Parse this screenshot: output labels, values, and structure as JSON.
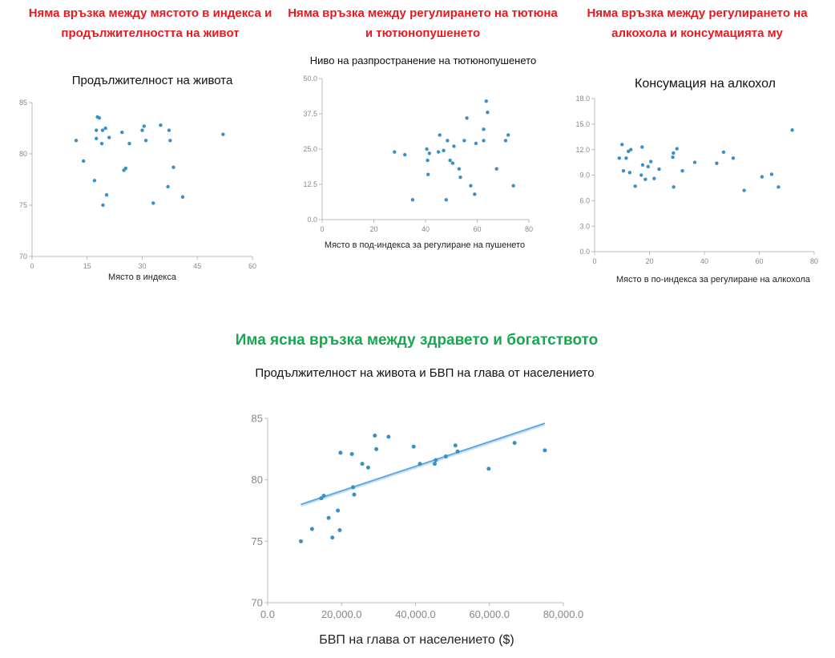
{
  "headlines": {
    "h1": "Няма връзка между мястото в индекса и продължителността на живот",
    "h2": "Няма връзка между регулирането на тютюна и тютюнопушенето",
    "h3": "Няма връзка между регулирането на алкохола и консумацията му",
    "h4": "Има ясна връзка между здравето и богатството"
  },
  "colors": {
    "headline_red": "#e8191e",
    "headline_green": "#1aa550",
    "point": "#3a8fc6",
    "trend": "#5aa7e0",
    "axis": "#bbbbbb"
  },
  "chart_data": [
    {
      "type": "scatter",
      "title": "Продължителност на живота",
      "xlabel": "Място в индекса",
      "ylabel": "",
      "xlim": [
        0,
        60
      ],
      "ylim": [
        70,
        85
      ],
      "xticks": [
        "0",
        "15",
        "30",
        "45",
        "60"
      ],
      "yticks": [
        "70",
        "75",
        "80",
        "85"
      ],
      "points": [
        [
          12,
          81.3
        ],
        [
          14,
          79.3
        ],
        [
          17,
          77.4
        ],
        [
          17.5,
          82.3
        ],
        [
          17.5,
          81.5
        ],
        [
          17.8,
          83.6
        ],
        [
          18.3,
          83.5
        ],
        [
          19,
          81
        ],
        [
          19.2,
          82.3
        ],
        [
          19.3,
          75
        ],
        [
          20,
          82.5
        ],
        [
          20.3,
          76
        ],
        [
          21,
          81.6
        ],
        [
          24.5,
          82.1
        ],
        [
          25,
          78.4
        ],
        [
          25.5,
          78.6
        ],
        [
          26.5,
          81
        ],
        [
          30,
          82.3
        ],
        [
          30.5,
          82.7
        ],
        [
          31,
          81.3
        ],
        [
          33,
          75.2
        ],
        [
          35,
          82.8
        ],
        [
          37,
          76.8
        ],
        [
          37.3,
          82.3
        ],
        [
          37.6,
          81.3
        ],
        [
          38.5,
          78.7
        ],
        [
          41,
          75.8
        ],
        [
          52,
          81.9
        ]
      ]
    },
    {
      "type": "scatter",
      "title": "Ниво на разпространение на тютюнопушенето",
      "xlabel": "Място в под-индекса за регулиране на пушенето",
      "ylabel": "",
      "xlim": [
        0,
        80
      ],
      "ylim": [
        0,
        50
      ],
      "xticks": [
        "0",
        "20",
        "40",
        "60",
        "80"
      ],
      "yticks": [
        "0.0",
        "12.5",
        "25.0",
        "37.5",
        "50.0"
      ],
      "points": [
        [
          28,
          24
        ],
        [
          32,
          23
        ],
        [
          35,
          7
        ],
        [
          40.5,
          25
        ],
        [
          40.8,
          21
        ],
        [
          41,
          16
        ],
        [
          41.5,
          23.5
        ],
        [
          45,
          24
        ],
        [
          45.5,
          30
        ],
        [
          47,
          24.5
        ],
        [
          48,
          7
        ],
        [
          48.5,
          28
        ],
        [
          49.5,
          21
        ],
        [
          50.5,
          20
        ],
        [
          51,
          26
        ],
        [
          53,
          18
        ],
        [
          53.5,
          15
        ],
        [
          55,
          28
        ],
        [
          56,
          36
        ],
        [
          57.5,
          12
        ],
        [
          59,
          9
        ],
        [
          59.5,
          27
        ],
        [
          62.5,
          28
        ],
        [
          62.5,
          32
        ],
        [
          63.5,
          42
        ],
        [
          64,
          38
        ],
        [
          67.5,
          18
        ],
        [
          71,
          28
        ],
        [
          72,
          30
        ],
        [
          74,
          12
        ]
      ]
    },
    {
      "type": "scatter",
      "title": "Консумация на алкохол",
      "xlabel": "Място в по-индекса за регулиране на алкохола",
      "ylabel": "",
      "xlim": [
        0,
        80
      ],
      "ylim": [
        0,
        18
      ],
      "xticks": [
        "0",
        "20",
        "40",
        "60",
        "80"
      ],
      "yticks": [
        "0.0",
        "3.0",
        "6.0",
        "9.0",
        "12.0",
        "15.0",
        "18.0"
      ],
      "points": [
        [
          9,
          11
        ],
        [
          10,
          12.6
        ],
        [
          10.5,
          9.5
        ],
        [
          11.5,
          11
        ],
        [
          12.3,
          11.8
        ],
        [
          12.8,
          9.3
        ],
        [
          13.2,
          12
        ],
        [
          14.8,
          7.7
        ],
        [
          17,
          9
        ],
        [
          17.5,
          10.2
        ],
        [
          17.3,
          12.3
        ],
        [
          18.5,
          8.5
        ],
        [
          19.5,
          10
        ],
        [
          20.5,
          10.6
        ],
        [
          21.7,
          8.6
        ],
        [
          23.5,
          9.7
        ],
        [
          28.5,
          11.1
        ],
        [
          28.7,
          11.6
        ],
        [
          28.8,
          7.6
        ],
        [
          30,
          12.1
        ],
        [
          32,
          9.5
        ],
        [
          36.5,
          10.5
        ],
        [
          44.5,
          10.4
        ],
        [
          47,
          11.7
        ],
        [
          50.5,
          11
        ],
        [
          54.5,
          7.2
        ],
        [
          61,
          8.8
        ],
        [
          64.5,
          9.1
        ],
        [
          67,
          7.6
        ],
        [
          72,
          14.3
        ]
      ]
    },
    {
      "type": "scatter",
      "title": "Продължителност на живота и БВП на глава от населението",
      "xlabel": "БВП на глава от населението ($)",
      "ylabel": "",
      "xlim": [
        0,
        80000
      ],
      "ylim": [
        70,
        85
      ],
      "xticks": [
        "0.0",
        "20,000.0",
        "40,000.0",
        "60,000.0",
        "80,000.0"
      ],
      "yticks": [
        "70",
        "75",
        "80",
        "85"
      ],
      "trendline": [
        [
          9000,
          78
        ],
        [
          75000,
          84.6
        ]
      ],
      "points": [
        [
          9000,
          75
        ],
        [
          12000,
          76
        ],
        [
          14500,
          78.5
        ],
        [
          15200,
          78.7
        ],
        [
          16500,
          76.9
        ],
        [
          17500,
          75.3
        ],
        [
          19000,
          77.5
        ],
        [
          19500,
          75.9
        ],
        [
          19700,
          82.2
        ],
        [
          22800,
          82.1
        ],
        [
          23100,
          79.4
        ],
        [
          23400,
          78.8
        ],
        [
          25600,
          81.3
        ],
        [
          27200,
          81
        ],
        [
          29000,
          83.6
        ],
        [
          29400,
          82.5
        ],
        [
          32700,
          83.5
        ],
        [
          39500,
          82.7
        ],
        [
          41200,
          81.3
        ],
        [
          45200,
          81.3
        ],
        [
          45500,
          81.6
        ],
        [
          48200,
          81.9
        ],
        [
          50800,
          82.8
        ],
        [
          51400,
          82.3
        ],
        [
          59800,
          80.9
        ],
        [
          66800,
          83
        ],
        [
          75000,
          82.4
        ]
      ]
    }
  ]
}
